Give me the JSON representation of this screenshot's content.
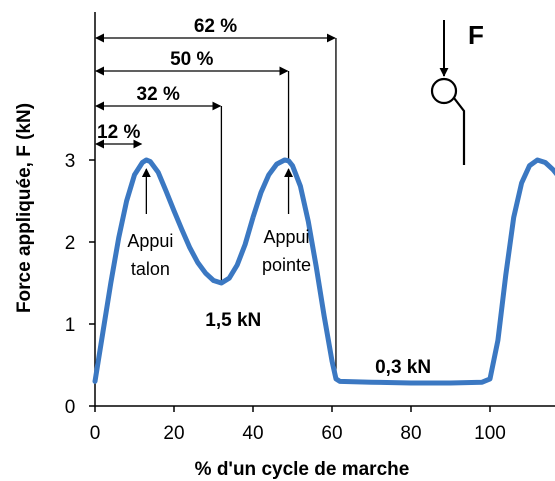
{
  "chart_data": {
    "type": "line",
    "title": "",
    "xlabel": "% d'un cycle de marche",
    "ylabel": "Force appliquée, F (kN)",
    "xlim": [
      0,
      117
    ],
    "ylim": [
      0,
      3.5
    ],
    "x_ticks": [
      0,
      20,
      40,
      60,
      80,
      100
    ],
    "y_ticks": [
      0,
      1,
      2,
      3
    ],
    "grid": false,
    "legend": "none",
    "color": "#3b78c2",
    "series": [
      {
        "values": [
          [
            0,
            0.3
          ],
          [
            2,
            0.9
          ],
          [
            4,
            1.5
          ],
          [
            6,
            2.05
          ],
          [
            8,
            2.5
          ],
          [
            10,
            2.82
          ],
          [
            12,
            2.97
          ],
          [
            13,
            3.0
          ],
          [
            14,
            2.98
          ],
          [
            16,
            2.85
          ],
          [
            18,
            2.62
          ],
          [
            20,
            2.38
          ],
          [
            22,
            2.15
          ],
          [
            24,
            1.93
          ],
          [
            26,
            1.75
          ],
          [
            28,
            1.62
          ],
          [
            30,
            1.53
          ],
          [
            32,
            1.5
          ],
          [
            34,
            1.56
          ],
          [
            36,
            1.72
          ],
          [
            38,
            1.97
          ],
          [
            40,
            2.3
          ],
          [
            42,
            2.6
          ],
          [
            44,
            2.82
          ],
          [
            46,
            2.95
          ],
          [
            48,
            3.0
          ],
          [
            49,
            2.99
          ],
          [
            50,
            2.93
          ],
          [
            52,
            2.68
          ],
          [
            54,
            2.25
          ],
          [
            56,
            1.7
          ],
          [
            58,
            1.1
          ],
          [
            60,
            0.55
          ],
          [
            61,
            0.33
          ],
          [
            62,
            0.3
          ],
          [
            70,
            0.29
          ],
          [
            80,
            0.28
          ],
          [
            90,
            0.28
          ],
          [
            98,
            0.29
          ],
          [
            100,
            0.33
          ],
          [
            102,
            0.8
          ],
          [
            104,
            1.6
          ],
          [
            106,
            2.3
          ],
          [
            108,
            2.72
          ],
          [
            110,
            2.93
          ],
          [
            112,
            3.0
          ],
          [
            114,
            2.97
          ],
          [
            116,
            2.88
          ],
          [
            117,
            2.82
          ]
        ]
      }
    ],
    "phase_markers": [
      {
        "label": "12 %",
        "x": 12
      },
      {
        "label": "32 %",
        "x": 32
      },
      {
        "label": "50 %",
        "x": 49
      },
      {
        "label": "62 %",
        "x": 61
      }
    ],
    "annotations": {
      "heel_line1": "Appui",
      "heel_line2": "talon",
      "heel_x": 13,
      "heel_y": 3.0,
      "toe_line1": "Appui",
      "toe_line2": "pointe",
      "toe_x": 49,
      "toe_y": 3.0,
      "valley_label": "1,5 kN",
      "plateau_label": "0,3 kN",
      "force_label": "F"
    }
  }
}
